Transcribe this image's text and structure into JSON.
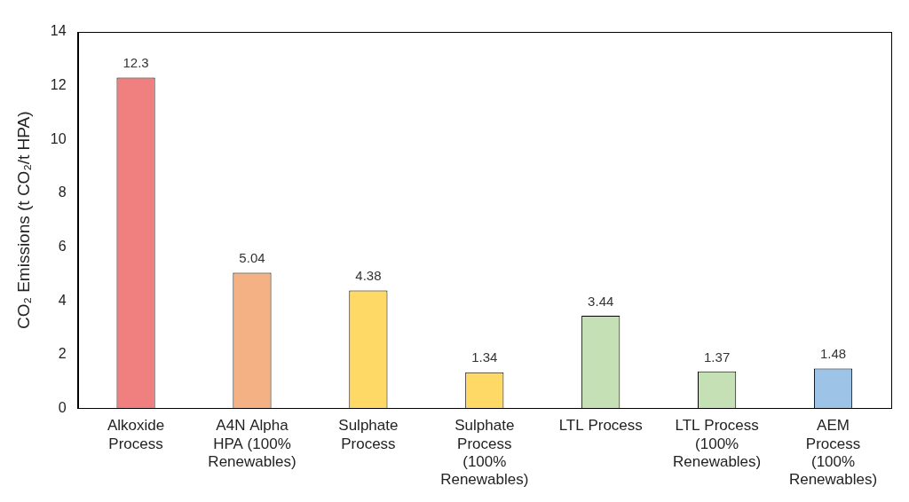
{
  "chart_data": {
    "type": "bar",
    "y_label": "CO₂ Emissions (t CO₂/t HPA)",
    "categories": [
      "Alkoxide Process",
      "A4N Alpha HPA (100% Renewables)",
      "Sulphate Process",
      "Sulphate Process (100% Renewables)",
      "LTL Process",
      "LTL Process (100% Renewables)",
      "AEM Process (100% Renewables)"
    ],
    "values": [
      12.3,
      5.04,
      4.38,
      1.34,
      3.44,
      1.37,
      1.48
    ],
    "colors": [
      "#f08080",
      "#f4b183",
      "#ffd966",
      "#ffd966",
      "#c5e0b4",
      "#c5e0b4",
      "#9dc3e6"
    ],
    "data_labels": true,
    "ylim": [
      0,
      14
    ],
    "yticks": [
      0,
      2,
      4,
      6,
      8,
      10,
      12,
      14
    ],
    "grid": false
  }
}
